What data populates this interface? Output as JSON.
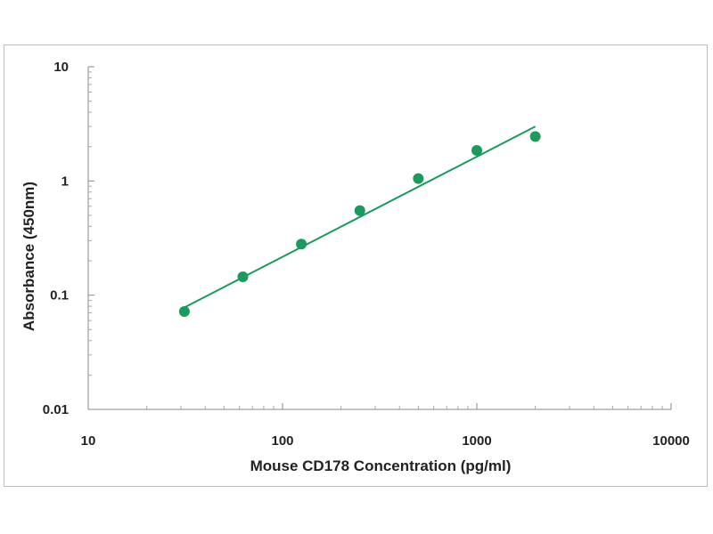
{
  "chart_data": {
    "type": "scatter",
    "title": "",
    "xlabel": "Mouse CD178 Concentration (pg/ml)",
    "ylabel": "Absorbance (450nm)",
    "xscale": "log",
    "yscale": "log",
    "xlim": [
      10,
      10000
    ],
    "ylim": [
      0.01,
      10
    ],
    "x_ticks": [
      10,
      100,
      1000,
      10000
    ],
    "x_tick_labels": [
      "10",
      "100",
      "1000",
      "10000"
    ],
    "y_ticks": [
      0.01,
      0.1,
      1,
      10
    ],
    "y_tick_labels": [
      "0.01",
      "0.1",
      "1",
      "10"
    ],
    "grid": false,
    "legend": "none",
    "series": [
      {
        "type": "scatter",
        "x": [
          31.25,
          62.5,
          125,
          250,
          500,
          1000,
          2000
        ],
        "y": [
          0.072,
          0.145,
          0.28,
          0.55,
          1.05,
          1.85,
          2.45
        ]
      },
      {
        "type": "line",
        "x": [
          31.25,
          2000
        ],
        "y": [
          0.078,
          3.0
        ]
      }
    ],
    "color": "#1a9a5c"
  }
}
